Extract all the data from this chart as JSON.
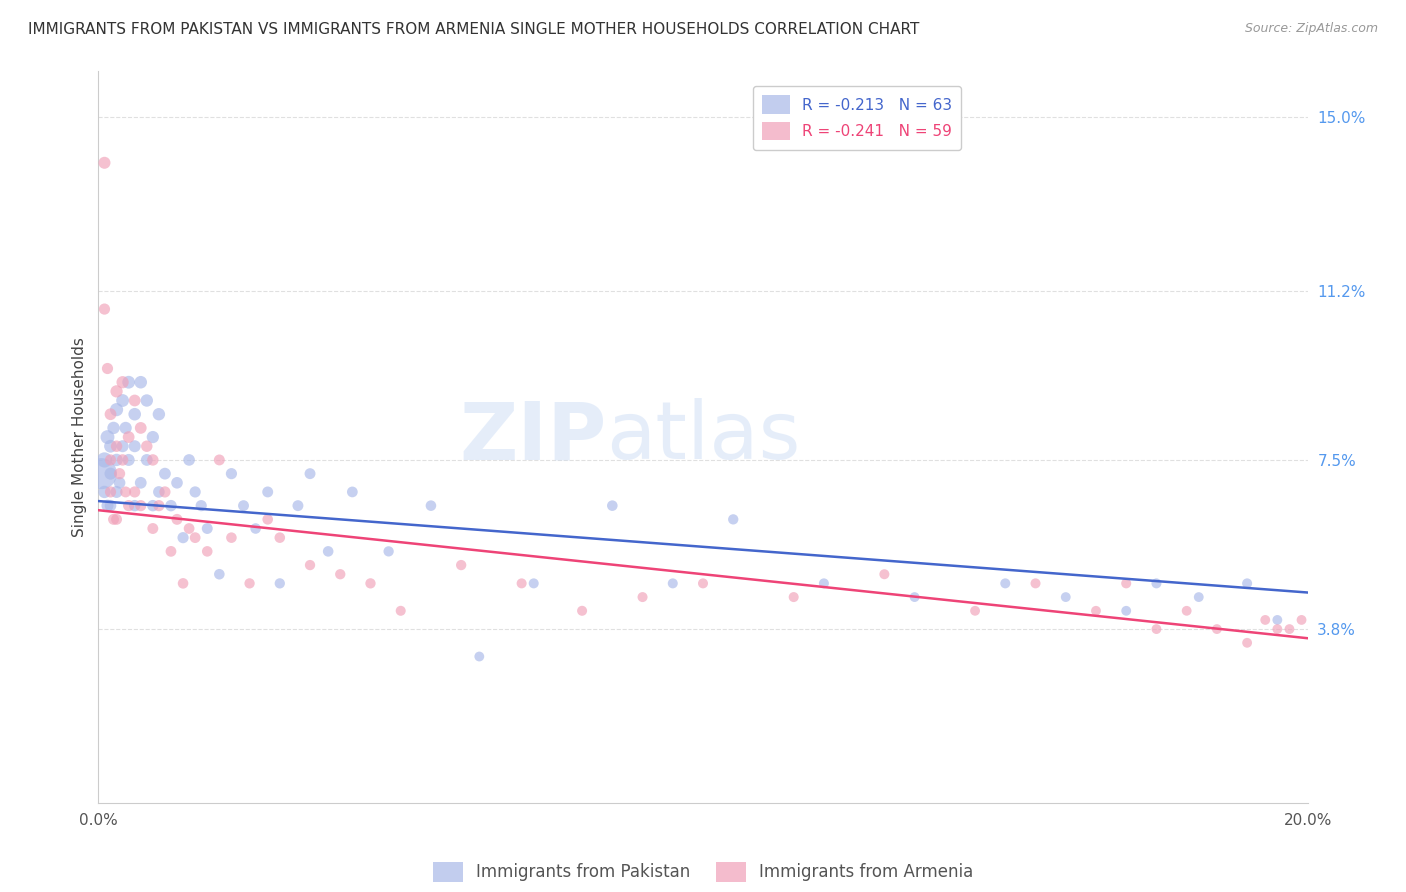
{
  "title": "IMMIGRANTS FROM PAKISTAN VS IMMIGRANTS FROM ARMENIA SINGLE MOTHER HOUSEHOLDS CORRELATION CHART",
  "source": "Source: ZipAtlas.com",
  "ylabel": "Single Mother Households",
  "xlim": [
    0.0,
    0.2
  ],
  "ylim": [
    0.0,
    0.16
  ],
  "yticks": [
    0.038,
    0.075,
    0.112,
    0.15
  ],
  "ytick_labels": [
    "3.8%",
    "7.5%",
    "11.2%",
    "15.0%"
  ],
  "xticks": [
    0.0,
    0.04,
    0.08,
    0.12,
    0.16,
    0.2
  ],
  "xtick_labels": [
    "0.0%",
    "",
    "",
    "",
    "",
    "20.0%"
  ],
  "bg_color": "#ffffff",
  "grid_color": "#e0e0e0",
  "pakistan_color": "#a8b8e8",
  "armenia_color": "#f0a0b8",
  "pakistan_line_color": "#4466cc",
  "armenia_line_color": "#ee4477",
  "watermark_color": "#ddeeff",
  "legend_r_pakistan": "R = -0.213",
  "legend_n_pakistan": "N = 63",
  "legend_r_armenia": "R = -0.241",
  "legend_n_armenia": "N = 59",
  "pak_trend_x0": 0.0,
  "pak_trend_y0": 0.066,
  "pak_trend_x1": 0.2,
  "pak_trend_y1": 0.046,
  "arm_trend_x0": 0.0,
  "arm_trend_y0": 0.064,
  "arm_trend_x1": 0.2,
  "arm_trend_y1": 0.036,
  "pakistan_x": [
    0.0005,
    0.001,
    0.001,
    0.0015,
    0.0015,
    0.002,
    0.002,
    0.002,
    0.0025,
    0.003,
    0.003,
    0.003,
    0.0035,
    0.004,
    0.004,
    0.0045,
    0.005,
    0.005,
    0.006,
    0.006,
    0.006,
    0.007,
    0.007,
    0.008,
    0.008,
    0.009,
    0.009,
    0.01,
    0.01,
    0.011,
    0.012,
    0.013,
    0.014,
    0.015,
    0.016,
    0.017,
    0.018,
    0.02,
    0.022,
    0.024,
    0.026,
    0.028,
    0.03,
    0.033,
    0.035,
    0.038,
    0.042,
    0.048,
    0.055,
    0.063,
    0.072,
    0.085,
    0.095,
    0.105,
    0.12,
    0.135,
    0.15,
    0.16,
    0.17,
    0.175,
    0.182,
    0.19,
    0.195
  ],
  "pakistan_y": [
    0.072,
    0.075,
    0.068,
    0.08,
    0.065,
    0.078,
    0.072,
    0.065,
    0.082,
    0.086,
    0.075,
    0.068,
    0.07,
    0.088,
    0.078,
    0.082,
    0.092,
    0.075,
    0.085,
    0.078,
    0.065,
    0.092,
    0.07,
    0.088,
    0.075,
    0.08,
    0.065,
    0.085,
    0.068,
    0.072,
    0.065,
    0.07,
    0.058,
    0.075,
    0.068,
    0.065,
    0.06,
    0.05,
    0.072,
    0.065,
    0.06,
    0.068,
    0.048,
    0.065,
    0.072,
    0.055,
    0.068,
    0.055,
    0.065,
    0.032,
    0.048,
    0.065,
    0.048,
    0.062,
    0.048,
    0.045,
    0.048,
    0.045,
    0.042,
    0.048,
    0.045,
    0.048,
    0.04
  ],
  "pakistan_size": [
    500,
    120,
    80,
    100,
    75,
    85,
    75,
    70,
    80,
    90,
    80,
    75,
    70,
    85,
    75,
    78,
    85,
    75,
    82,
    75,
    68,
    82,
    72,
    80,
    72,
    78,
    68,
    80,
    70,
    72,
    68,
    70,
    65,
    70,
    65,
    65,
    62,
    58,
    65,
    62,
    58,
    62,
    55,
    62,
    62,
    58,
    60,
    55,
    58,
    50,
    52,
    58,
    52,
    55,
    52,
    50,
    52,
    50,
    50,
    52,
    50,
    52,
    50
  ],
  "armenia_x": [
    0.001,
    0.001,
    0.0015,
    0.002,
    0.002,
    0.002,
    0.0025,
    0.003,
    0.003,
    0.003,
    0.0035,
    0.004,
    0.004,
    0.0045,
    0.005,
    0.005,
    0.006,
    0.006,
    0.007,
    0.007,
    0.008,
    0.009,
    0.009,
    0.01,
    0.011,
    0.012,
    0.013,
    0.014,
    0.015,
    0.016,
    0.018,
    0.02,
    0.022,
    0.025,
    0.028,
    0.03,
    0.035,
    0.04,
    0.045,
    0.05,
    0.06,
    0.07,
    0.08,
    0.09,
    0.1,
    0.115,
    0.13,
    0.145,
    0.155,
    0.165,
    0.17,
    0.175,
    0.18,
    0.185,
    0.19,
    0.193,
    0.195,
    0.197,
    0.199
  ],
  "armenia_y": [
    0.14,
    0.108,
    0.095,
    0.085,
    0.075,
    0.068,
    0.062,
    0.09,
    0.078,
    0.062,
    0.072,
    0.092,
    0.075,
    0.068,
    0.08,
    0.065,
    0.088,
    0.068,
    0.082,
    0.065,
    0.078,
    0.075,
    0.06,
    0.065,
    0.068,
    0.055,
    0.062,
    0.048,
    0.06,
    0.058,
    0.055,
    0.075,
    0.058,
    0.048,
    0.062,
    0.058,
    0.052,
    0.05,
    0.048,
    0.042,
    0.052,
    0.048,
    0.042,
    0.045,
    0.048,
    0.045,
    0.05,
    0.042,
    0.048,
    0.042,
    0.048,
    0.038,
    0.042,
    0.038,
    0.035,
    0.04,
    0.038,
    0.038,
    0.04
  ],
  "armenia_size": [
    75,
    65,
    65,
    72,
    65,
    65,
    62,
    78,
    68,
    62,
    65,
    78,
    68,
    62,
    72,
    65,
    72,
    65,
    72,
    65,
    68,
    68,
    62,
    65,
    65,
    60,
    62,
    58,
    60,
    60,
    58,
    62,
    58,
    55,
    58,
    58,
    55,
    55,
    55,
    52,
    55,
    52,
    52,
    52,
    52,
    52,
    52,
    50,
    52,
    50,
    52,
    50,
    50,
    50,
    50,
    50,
    50,
    50,
    50
  ]
}
